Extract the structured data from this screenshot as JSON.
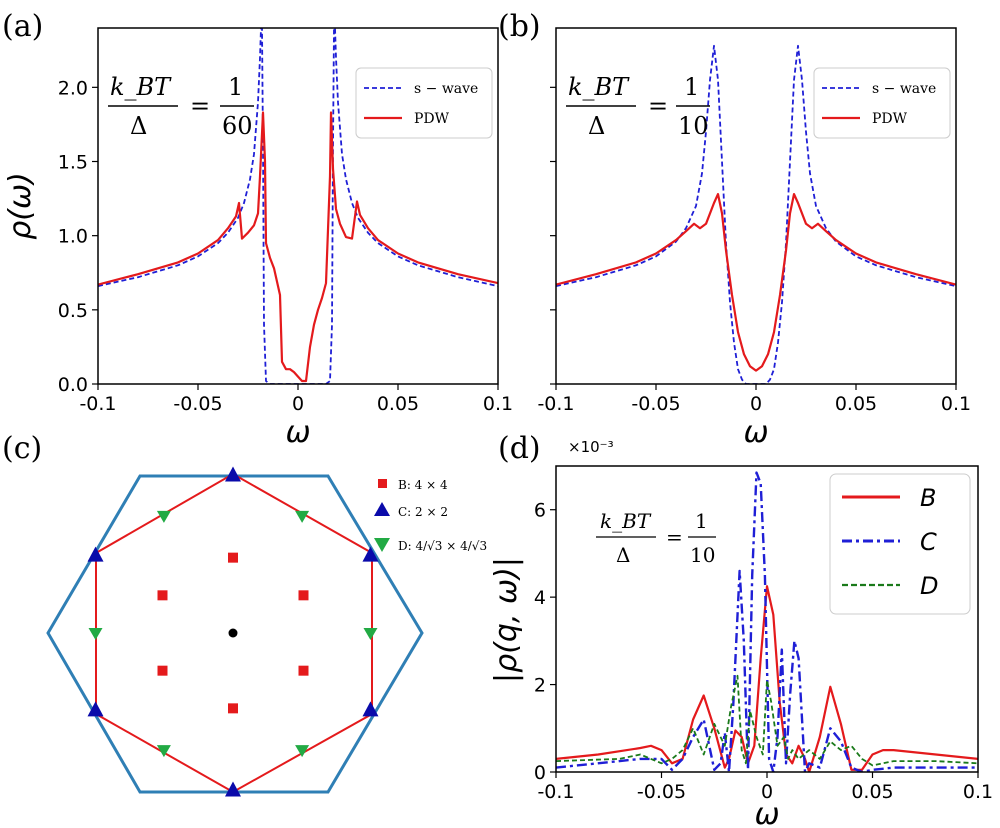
{
  "panel_labels": {
    "a": "(a)",
    "b": "(b)",
    "c": "(c)",
    "d": "(d)"
  },
  "annotations": {
    "a": {
      "num": "k_BT",
      "den": "Δ",
      "eq": "=",
      "rnum": "1",
      "rden": "60"
    },
    "b": {
      "num": "k_BT",
      "den": "Δ",
      "eq": "=",
      "rnum": "1",
      "rden": "10"
    },
    "d": {
      "num": "k_BT",
      "den": "Δ",
      "eq": "=",
      "rnum": "1",
      "rden": "10"
    }
  },
  "panel_d_multiplier": "×10⁻³",
  "panel_c_legend": [
    {
      "label": "B: 4 × 4",
      "marker": "square",
      "color": "#e41a1c"
    },
    {
      "label": "C: 2 × 2",
      "marker": "triangle-up",
      "color": "#0a0aaa"
    },
    {
      "label": "D: 4/√3 × 4/√3",
      "marker": "triangle-down",
      "color": "#22aa44"
    }
  ],
  "colors": {
    "swave": "#1f1fd6",
    "pdw": "#e41a1c",
    "B": "#e41a1c",
    "C": "#1f1fd6",
    "D": "#1a7a1a",
    "hexagon": "#2f7fb5",
    "octagon": "#e41a1c"
  },
  "chart_data": [
    {
      "panel": "a",
      "type": "line",
      "xlabel": "ω",
      "ylabel": "ρ(ω)",
      "xlim": [
        -0.1,
        0.1
      ],
      "ylim": [
        0,
        2.4
      ],
      "xticks": [
        -0.1,
        -0.05,
        0,
        0.05,
        0.1
      ],
      "xticklabels": [
        "-0.1",
        "-0.05",
        "0",
        "0.05",
        "0.1"
      ],
      "yticks": [
        0.0,
        0.5,
        1.0,
        1.5,
        2.0
      ],
      "yticklabels": [
        "0.0",
        "0.5",
        "1.0",
        "1.5",
        "2.0"
      ],
      "legend_position": "top-right",
      "series": [
        {
          "name": "s − wave",
          "style": "dashed",
          "x": [
            -0.1,
            -0.08,
            -0.06,
            -0.05,
            -0.04,
            -0.035,
            -0.03,
            -0.027,
            -0.024,
            -0.022,
            -0.02,
            -0.019,
            -0.0185,
            -0.018,
            -0.0175,
            -0.017,
            -0.016,
            -0.014,
            0.014,
            0.016,
            0.017,
            0.0175,
            0.018,
            0.0185,
            0.019,
            0.02,
            0.022,
            0.024,
            0.027,
            0.03,
            0.035,
            0.04,
            0.05,
            0.06,
            0.08,
            0.1
          ],
          "y": [
            0.66,
            0.72,
            0.8,
            0.86,
            0.95,
            1.02,
            1.12,
            1.22,
            1.38,
            1.55,
            1.9,
            2.2,
            2.4,
            2.4,
            1.6,
            0.4,
            0.02,
            0.0,
            0.0,
            0.02,
            0.4,
            1.6,
            2.4,
            2.4,
            2.2,
            1.9,
            1.55,
            1.38,
            1.22,
            1.12,
            1.02,
            0.95,
            0.86,
            0.8,
            0.72,
            0.66
          ]
        },
        {
          "name": "PDW",
          "style": "solid",
          "x": [
            -0.1,
            -0.08,
            -0.06,
            -0.05,
            -0.04,
            -0.035,
            -0.031,
            -0.0295,
            -0.028,
            -0.025,
            -0.022,
            -0.02,
            -0.019,
            -0.0175,
            -0.0165,
            -0.016,
            -0.014,
            -0.012,
            -0.009,
            -0.008,
            -0.006,
            -0.004,
            -0.002,
            0.0,
            0.002,
            0.004,
            0.006,
            0.008,
            0.01,
            0.012,
            0.014,
            0.016,
            0.0165,
            0.0175,
            0.019,
            0.021,
            0.024,
            0.027,
            0.0295,
            0.031,
            0.035,
            0.04,
            0.05,
            0.06,
            0.08,
            0.1
          ],
          "y": [
            0.67,
            0.74,
            0.82,
            0.88,
            0.97,
            1.05,
            1.13,
            1.22,
            0.98,
            1.02,
            1.07,
            1.15,
            1.4,
            1.83,
            1.5,
            0.95,
            0.85,
            0.78,
            0.6,
            0.15,
            0.1,
            0.1,
            0.08,
            0.05,
            0.02,
            0.02,
            0.25,
            0.4,
            0.5,
            0.58,
            0.68,
            1.4,
            1.83,
            1.45,
            1.18,
            1.08,
            0.99,
            0.98,
            1.23,
            1.14,
            1.05,
            0.97,
            0.88,
            0.82,
            0.74,
            0.68
          ]
        }
      ]
    },
    {
      "panel": "b",
      "type": "line",
      "xlabel": "ω",
      "ylabel": "",
      "xlim": [
        -0.1,
        0.1
      ],
      "ylim": [
        0,
        2.4
      ],
      "xticks": [
        -0.1,
        -0.05,
        0,
        0.05,
        0.1
      ],
      "xticklabels": [
        "-0.1",
        "-0.05",
        "0",
        "0.05",
        "0.1"
      ],
      "yticks": [
        0.0,
        0.5,
        1.0,
        1.5,
        2.0
      ],
      "legend_position": "top-right",
      "series": [
        {
          "name": "s − wave",
          "style": "dashed",
          "x": [
            -0.1,
            -0.08,
            -0.06,
            -0.05,
            -0.04,
            -0.035,
            -0.03,
            -0.027,
            -0.025,
            -0.023,
            -0.021,
            -0.019,
            -0.017,
            -0.015,
            -0.013,
            -0.011,
            -0.009,
            -0.007,
            -0.005,
            -0.003,
            0.0,
            0.003,
            0.005,
            0.007,
            0.009,
            0.011,
            0.013,
            0.015,
            0.017,
            0.019,
            0.021,
            0.023,
            0.025,
            0.027,
            0.03,
            0.035,
            0.04,
            0.05,
            0.06,
            0.08,
            0.1
          ],
          "y": [
            0.66,
            0.72,
            0.8,
            0.86,
            0.96,
            1.05,
            1.2,
            1.42,
            1.7,
            2.05,
            2.28,
            2.05,
            1.5,
            0.95,
            0.55,
            0.28,
            0.1,
            0.03,
            0.0,
            0.0,
            0.0,
            0.0,
            0.0,
            0.03,
            0.1,
            0.28,
            0.55,
            0.95,
            1.5,
            2.05,
            2.28,
            2.05,
            1.7,
            1.42,
            1.2,
            1.05,
            0.96,
            0.86,
            0.8,
            0.72,
            0.66
          ]
        },
        {
          "name": "PDW",
          "style": "solid",
          "x": [
            -0.1,
            -0.08,
            -0.06,
            -0.05,
            -0.04,
            -0.035,
            -0.031,
            -0.028,
            -0.025,
            -0.021,
            -0.019,
            -0.017,
            -0.015,
            -0.012,
            -0.009,
            -0.006,
            -0.003,
            0.0,
            0.003,
            0.006,
            0.009,
            0.012,
            0.015,
            0.017,
            0.019,
            0.021,
            0.025,
            0.028,
            0.031,
            0.035,
            0.04,
            0.05,
            0.06,
            0.08,
            0.1
          ],
          "y": [
            0.67,
            0.74,
            0.82,
            0.88,
            0.97,
            1.03,
            1.08,
            1.05,
            1.08,
            1.22,
            1.28,
            1.15,
            0.9,
            0.6,
            0.35,
            0.2,
            0.12,
            0.09,
            0.12,
            0.2,
            0.35,
            0.6,
            0.9,
            1.15,
            1.28,
            1.22,
            1.08,
            1.05,
            1.08,
            1.03,
            0.97,
            0.88,
            0.82,
            0.74,
            0.67
          ]
        }
      ]
    },
    {
      "panel": "d",
      "type": "line",
      "xlabel": "ω",
      "ylabel": "|ρ(q, ω)|",
      "xlim": [
        -0.1,
        0.1
      ],
      "ylim": [
        0,
        7.0
      ],
      "xticks": [
        -0.1,
        -0.05,
        0,
        0.05,
        0.1
      ],
      "xticklabels": [
        "-0.1",
        "-0.05",
        "0",
        "0.05",
        "0.1"
      ],
      "yticks": [
        0,
        2,
        4,
        6
      ],
      "yticklabels": [
        "0",
        "2",
        "4",
        "6"
      ],
      "legend_position": "top-right",
      "series": [
        {
          "name": "B",
          "style": "solid",
          "x": [
            -0.1,
            -0.08,
            -0.06,
            -0.055,
            -0.05,
            -0.045,
            -0.04,
            -0.035,
            -0.03,
            -0.025,
            -0.02,
            -0.018,
            -0.015,
            -0.012,
            -0.009,
            -0.006,
            -0.003,
            0.0,
            0.003,
            0.006,
            0.009,
            0.012,
            0.015,
            0.018,
            0.02,
            0.025,
            0.03,
            0.035,
            0.04,
            0.045,
            0.05,
            0.055,
            0.06,
            0.08,
            0.1
          ],
          "y": [
            0.3,
            0.4,
            0.55,
            0.6,
            0.5,
            0.2,
            0.3,
            1.2,
            1.75,
            1.0,
            0.1,
            0.3,
            0.95,
            0.8,
            0.2,
            0.6,
            2.6,
            4.25,
            3.6,
            1.6,
            0.4,
            0.2,
            0.6,
            0.3,
            0.0,
            0.8,
            1.95,
            1.1,
            0.05,
            0.05,
            0.4,
            0.5,
            0.5,
            0.4,
            0.3
          ]
        },
        {
          "name": "C",
          "style": "dashdot",
          "x": [
            -0.1,
            -0.06,
            -0.05,
            -0.045,
            -0.04,
            -0.035,
            -0.03,
            -0.025,
            -0.022,
            -0.02,
            -0.018,
            -0.016,
            -0.013,
            -0.011,
            -0.009,
            -0.007,
            -0.005,
            -0.003,
            -0.001,
            0.001,
            0.003,
            0.005,
            0.007,
            0.009,
            0.011,
            0.013,
            0.015,
            0.018,
            0.02,
            0.025,
            0.03,
            0.035,
            0.04,
            0.045,
            0.05,
            0.06,
            0.1
          ],
          "y": [
            0.1,
            0.3,
            0.3,
            0.05,
            0.3,
            0.8,
            1.2,
            0.05,
            0.2,
            0.9,
            0.0,
            1.5,
            4.6,
            3.0,
            0.05,
            4.5,
            6.85,
            6.6,
            4.5,
            0.3,
            0.0,
            0.8,
            2.8,
            0.2,
            1.8,
            3.0,
            2.6,
            0.0,
            0.2,
            0.1,
            1.0,
            0.7,
            0.1,
            0.0,
            0.05,
            0.1,
            0.1
          ]
        },
        {
          "name": "D",
          "style": "dashed",
          "x": [
            -0.1,
            -0.07,
            -0.06,
            -0.05,
            -0.045,
            -0.04,
            -0.035,
            -0.03,
            -0.025,
            -0.02,
            -0.017,
            -0.014,
            -0.012,
            -0.01,
            -0.008,
            -0.005,
            -0.002,
            0.0,
            0.002,
            0.005,
            0.008,
            0.01,
            0.012,
            0.015,
            0.02,
            0.025,
            0.03,
            0.035,
            0.04,
            0.045,
            0.05,
            0.06,
            0.08,
            0.1
          ],
          "y": [
            0.25,
            0.3,
            0.4,
            0.2,
            0.3,
            0.5,
            1.0,
            0.4,
            1.1,
            0.6,
            1.5,
            2.2,
            0.5,
            0.2,
            1.4,
            0.8,
            0.4,
            2.1,
            1.6,
            0.6,
            0.8,
            0.3,
            0.5,
            0.3,
            0.5,
            0.3,
            0.7,
            0.5,
            0.6,
            0.3,
            0.15,
            0.25,
            0.25,
            0.2
          ]
        }
      ]
    },
    {
      "panel": "c",
      "type": "scatter",
      "series": [
        {
          "name": "B: 4 × 4",
          "marker": "square",
          "x": [
            0,
            -1,
            1,
            -1,
            1,
            0
          ],
          "y": [
            1.1,
            0.55,
            0.55,
            -0.55,
            -0.55,
            -1.1
          ]
        },
        {
          "name": "C: 2 × 2",
          "marker": "triangle-up",
          "x": [
            0,
            -1.95,
            1.95,
            -1.95,
            1.95,
            0
          ],
          "y": [
            2.3,
            1.13,
            1.13,
            -1.13,
            -1.13,
            -2.3
          ]
        },
        {
          "name": "D: 4/√3 × 4/√3",
          "marker": "triangle-down",
          "x": [
            -0.98,
            0.98,
            -1.95,
            1.95,
            -0.98,
            0.98
          ],
          "y": [
            1.71,
            1.71,
            0,
            0,
            -1.71,
            -1.71
          ]
        },
        {
          "name": "center",
          "marker": "dot",
          "x": [
            0
          ],
          "y": [
            0
          ]
        }
      ]
    }
  ]
}
